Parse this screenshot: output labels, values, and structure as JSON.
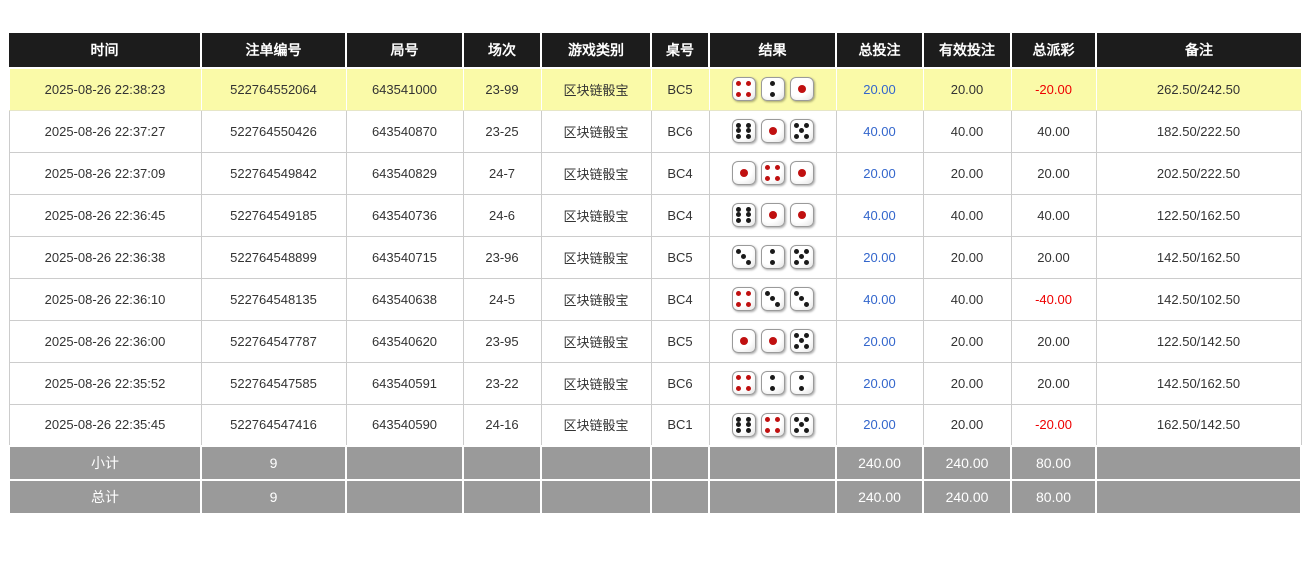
{
  "colors": {
    "header_bg": "#1c1c1c",
    "highlight_row_bg": "#fafaa8",
    "bet_amount_blue": "#3366cc",
    "negative_red": "#ee0000",
    "footer_bg": "#9a9a9a",
    "die_pip_red": "#c01010",
    "die_pip_black": "#1a1a1a"
  },
  "table": {
    "columns": [
      {
        "key": "time",
        "label": "时间"
      },
      {
        "key": "bet_id",
        "label": "注单编号"
      },
      {
        "key": "round_id",
        "label": "局号"
      },
      {
        "key": "session",
        "label": "场次"
      },
      {
        "key": "game_type",
        "label": "游戏类别"
      },
      {
        "key": "table_no",
        "label": "桌号"
      },
      {
        "key": "result",
        "label": "结果"
      },
      {
        "key": "total_bet",
        "label": "总投注"
      },
      {
        "key": "valid_bet",
        "label": "有效投注"
      },
      {
        "key": "payout",
        "label": "总派彩"
      },
      {
        "key": "remark",
        "label": "备注"
      }
    ],
    "rows": [
      {
        "time": "2025-08-26 22:38:23",
        "bet_id": "522764552064",
        "round_id": "643541000",
        "session": "23-99",
        "game_type": "区块链骰宝",
        "table_no": "BC5",
        "dice": [
          4,
          2,
          1
        ],
        "total_bet": "20.00",
        "valid_bet": "20.00",
        "payout": "-20.00",
        "remark": "262.50/242.50",
        "highlighted": true
      },
      {
        "time": "2025-08-26 22:37:27",
        "bet_id": "522764550426",
        "round_id": "643540870",
        "session": "23-25",
        "game_type": "区块链骰宝",
        "table_no": "BC6",
        "dice": [
          6,
          1,
          5
        ],
        "total_bet": "40.00",
        "valid_bet": "40.00",
        "payout": "40.00",
        "remark": "182.50/222.50",
        "highlighted": false
      },
      {
        "time": "2025-08-26 22:37:09",
        "bet_id": "522764549842",
        "round_id": "643540829",
        "session": "24-7",
        "game_type": "区块链骰宝",
        "table_no": "BC4",
        "dice": [
          1,
          4,
          1
        ],
        "total_bet": "20.00",
        "valid_bet": "20.00",
        "payout": "20.00",
        "remark": "202.50/222.50",
        "highlighted": false
      },
      {
        "time": "2025-08-26 22:36:45",
        "bet_id": "522764549185",
        "round_id": "643540736",
        "session": "24-6",
        "game_type": "区块链骰宝",
        "table_no": "BC4",
        "dice": [
          6,
          1,
          1
        ],
        "total_bet": "40.00",
        "valid_bet": "40.00",
        "payout": "40.00",
        "remark": "122.50/162.50",
        "highlighted": false
      },
      {
        "time": "2025-08-26 22:36:38",
        "bet_id": "522764548899",
        "round_id": "643540715",
        "session": "23-96",
        "game_type": "区块链骰宝",
        "table_no": "BC5",
        "dice": [
          3,
          2,
          5
        ],
        "total_bet": "20.00",
        "valid_bet": "20.00",
        "payout": "20.00",
        "remark": "142.50/162.50",
        "highlighted": false
      },
      {
        "time": "2025-08-26 22:36:10",
        "bet_id": "522764548135",
        "round_id": "643540638",
        "session": "24-5",
        "game_type": "区块链骰宝",
        "table_no": "BC4",
        "dice": [
          4,
          3,
          3
        ],
        "total_bet": "40.00",
        "valid_bet": "40.00",
        "payout": "-40.00",
        "remark": "142.50/102.50",
        "highlighted": false
      },
      {
        "time": "2025-08-26 22:36:00",
        "bet_id": "522764547787",
        "round_id": "643540620",
        "session": "23-95",
        "game_type": "区块链骰宝",
        "table_no": "BC5",
        "dice": [
          1,
          1,
          5
        ],
        "total_bet": "20.00",
        "valid_bet": "20.00",
        "payout": "20.00",
        "remark": "122.50/142.50",
        "highlighted": false
      },
      {
        "time": "2025-08-26 22:35:52",
        "bet_id": "522764547585",
        "round_id": "643540591",
        "session": "23-22",
        "game_type": "区块链骰宝",
        "table_no": "BC6",
        "dice": [
          4,
          2,
          2
        ],
        "total_bet": "20.00",
        "valid_bet": "20.00",
        "payout": "20.00",
        "remark": "142.50/162.50",
        "highlighted": false
      },
      {
        "time": "2025-08-26 22:35:45",
        "bet_id": "522764547416",
        "round_id": "643540590",
        "session": "24-16",
        "game_type": "区块链骰宝",
        "table_no": "BC1",
        "dice": [
          6,
          4,
          5
        ],
        "total_bet": "20.00",
        "valid_bet": "20.00",
        "payout": "-20.00",
        "remark": "162.50/142.50",
        "highlighted": false
      }
    ],
    "footer_rows": [
      {
        "label": "小计",
        "count": "9",
        "total_bet": "240.00",
        "valid_bet": "240.00",
        "payout": "80.00"
      },
      {
        "label": "总计",
        "count": "9",
        "total_bet": "240.00",
        "valid_bet": "240.00",
        "payout": "80.00"
      }
    ]
  }
}
